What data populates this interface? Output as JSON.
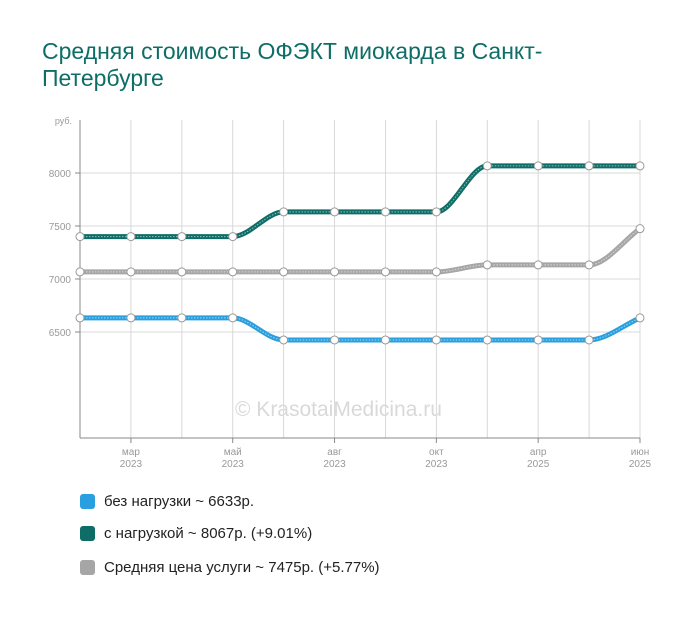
{
  "colors": {
    "series_blue": "#2a9fdf",
    "series_teal": "#0e6e67",
    "series_gray": "#a6a6a6",
    "title": "#0e6e67",
    "grid": "#d8d8d8",
    "axis_text": "#999999"
  },
  "watermark": "© KrasotaiMedicina.ru",
  "chart_data": {
    "type": "line",
    "title": "Средняя стоимость ОФЭКТ миокарда в Санкт-Петербурге",
    "ylabel": "руб.",
    "ylim": [
      5500,
      8500
    ],
    "yticks": [
      6500,
      7000,
      7500,
      8000
    ],
    "xtick_labels": [
      {
        "i": 1,
        "month": "мар",
        "year": "2023"
      },
      {
        "i": 3,
        "month": "май",
        "year": "2023"
      },
      {
        "i": 5,
        "month": "авг",
        "year": "2023"
      },
      {
        "i": 7,
        "month": "окт",
        "year": "2023"
      },
      {
        "i": 9,
        "month": "апр",
        "year": "2025"
      },
      {
        "i": 11,
        "month": "июн",
        "year": "2025"
      }
    ],
    "grid": true,
    "legend_position": "bottom",
    "series": [
      {
        "name": "без нагрузки",
        "legend_text": "без нагрузки ~ 6633р.",
        "color": "#2a9fdf",
        "values": [
          6633,
          6633,
          6633,
          6633,
          6425,
          6425,
          6425,
          6425,
          6425,
          6425,
          6425,
          6633
        ]
      },
      {
        "name": "с нагрузкой",
        "legend_text": "с нагрузкой ~ 8067р. (+9.01%)",
        "color": "#0e6e67",
        "values": [
          7400,
          7400,
          7400,
          7400,
          7633,
          7633,
          7633,
          7633,
          8067,
          8067,
          8067,
          8067
        ]
      },
      {
        "name": "Средняя цена услуги",
        "legend_text": "Средняя цена услуги ~ 7475р. (+5.77%)",
        "color": "#a6a6a6",
        "values": [
          7067,
          7067,
          7067,
          7067,
          7067,
          7067,
          7067,
          7067,
          7133,
          7133,
          7133,
          7475
        ]
      }
    ]
  }
}
